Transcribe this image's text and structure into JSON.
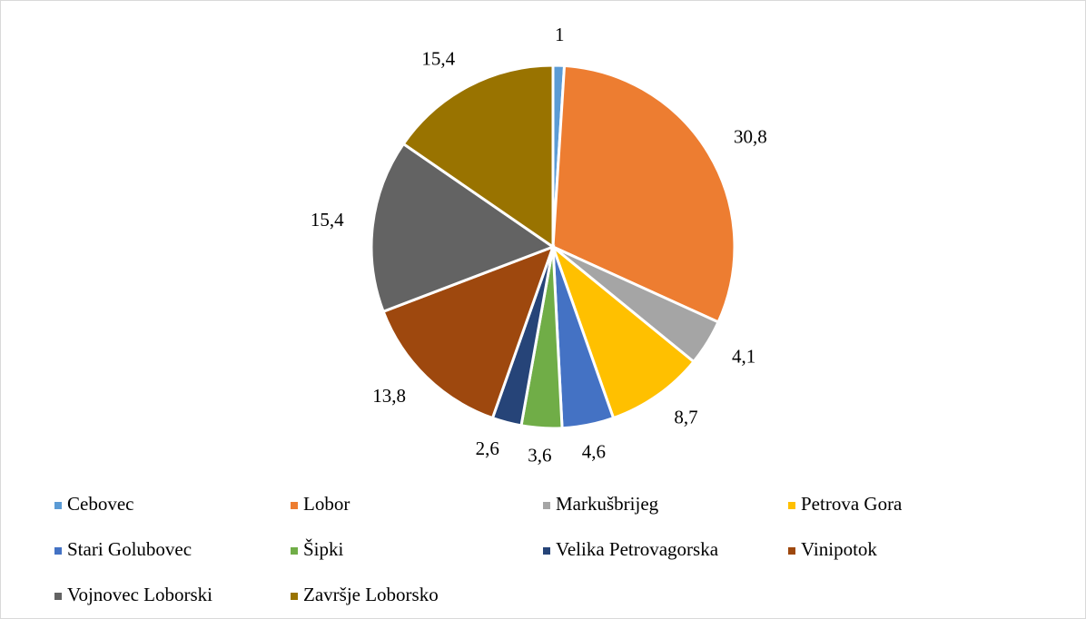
{
  "chart_data": {
    "type": "pie",
    "categories": [
      "Cebovec",
      "Lobor",
      "Markušbrijeg",
      "Petrova Gora",
      "Stari Golubovec",
      "Šipki",
      "Velika Petrovagorska",
      "Vinipotok",
      "Vojnovec Loborski",
      "Završje Loborsko"
    ],
    "values": [
      1,
      30.8,
      4.1,
      8.7,
      4.6,
      3.6,
      2.6,
      13.8,
      15.4,
      15.4
    ],
    "value_labels": [
      "1",
      "30,8",
      "4,1",
      "8,7",
      "4,6",
      "3,6",
      "2,6",
      "13,8",
      "15,4",
      "15,4"
    ],
    "colors": [
      "#5b9bd5",
      "#ed7d31",
      "#a5a5a5",
      "#ffc000",
      "#4472c4",
      "#70ad47",
      "#264478",
      "#9e480e",
      "#636363",
      "#997300"
    ],
    "legend": "bottom"
  }
}
